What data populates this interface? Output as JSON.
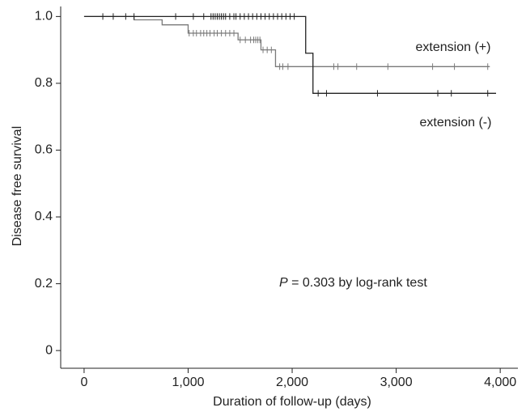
{
  "chart_data": {
    "type": "step",
    "xlabel": "Duration of follow-up (days)",
    "ylabel": "Disease free survival",
    "annotation_italic": "P",
    "annotation": " = 0.303 by log-rank test",
    "xlim": [
      -225,
      4170
    ],
    "ylim": [
      -0.053,
      1.03
    ],
    "xticks": [
      0,
      {
        "value": 1000,
        "label": "1,000"
      },
      {
        "value": 2000,
        "label": "2,000"
      },
      {
        "value": 3000,
        "label": "3,000"
      },
      {
        "value": 4000,
        "label": "4,000"
      }
    ],
    "yticks": [
      0,
      0.2,
      0.4,
      0.6,
      0.8,
      {
        "value": 1,
        "label": "1.0"
      }
    ],
    "series": [
      {
        "name": "extension (+)",
        "color": "#7a7a7a",
        "x": [
          0,
          480,
          750,
          1000,
          1480,
          1700,
          1840,
          3900
        ],
        "values": [
          1.0,
          0.99,
          0.975,
          0.95,
          0.93,
          0.9,
          0.85,
          0.85
        ],
        "censored": [
          1010,
          1050,
          1080,
          1120,
          1150,
          1180,
          1210,
          1250,
          1280,
          1320,
          1360,
          1400,
          1440,
          1500,
          1550,
          1600,
          1630,
          1650,
          1670,
          1690,
          1720,
          1760,
          1800,
          1880,
          1910,
          1960,
          2400,
          2440,
          2620,
          2920,
          3350,
          3560,
          3880
        ]
      },
      {
        "name": "extension (-)",
        "color": "#222222",
        "x": [
          0,
          2130,
          2200,
          3960
        ],
        "values": [
          1.0,
          0.89,
          0.77,
          0.77
        ],
        "censored": [
          180,
          280,
          400,
          480,
          880,
          1050,
          1150,
          1220,
          1240,
          1260,
          1280,
          1300,
          1320,
          1340,
          1360,
          1400,
          1440,
          1460,
          1500,
          1540,
          1580,
          1620,
          1660,
          1700,
          1740,
          1780,
          1820,
          1860,
          1900,
          1940,
          1980,
          2020,
          2250,
          2330,
          2820,
          3400,
          3530,
          3880
        ]
      }
    ]
  }
}
